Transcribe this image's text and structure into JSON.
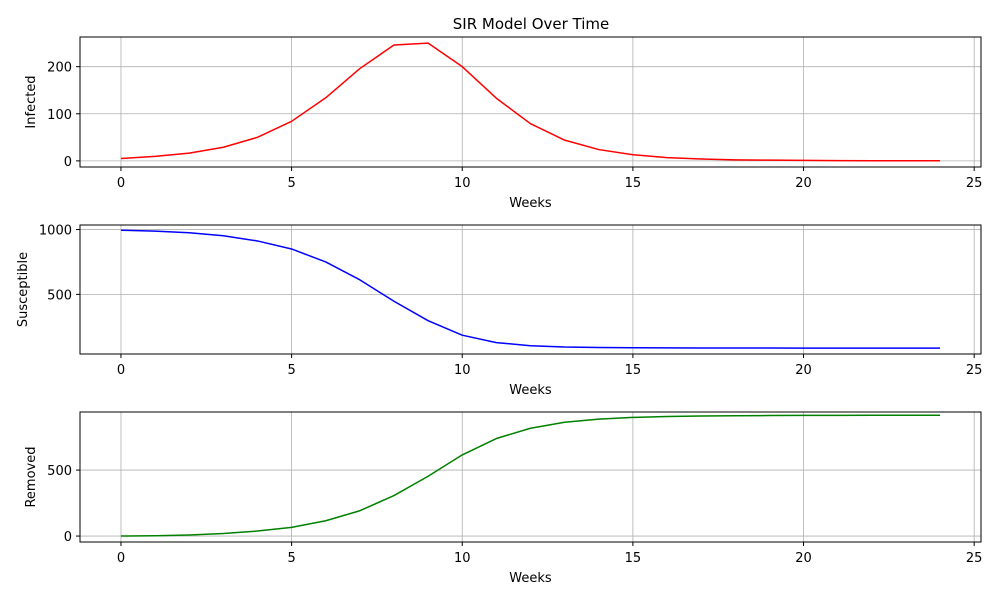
{
  "chart_data": {
    "type": "line",
    "title": "SIR Model Over Time",
    "grid": true,
    "panels": [
      {
        "ylabel": "Infected",
        "xlabel": "Weeks",
        "color": "#ff0000",
        "xlim": [
          -1.2,
          25.2
        ],
        "ylim": [
          -13,
          263
        ],
        "xticks": [
          0,
          5,
          10,
          15,
          20,
          25
        ],
        "yticks": [
          0,
          100,
          200
        ],
        "x": [
          0,
          1,
          2,
          3,
          4,
          5,
          6,
          7,
          8,
          9,
          10,
          11,
          12,
          13,
          14,
          15,
          16,
          17,
          18,
          19,
          20,
          21,
          22,
          23,
          24
        ],
        "y": [
          5,
          9.5,
          16.5,
          29,
          50,
          84,
          134,
          196,
          246,
          250,
          200,
          133,
          79,
          44,
          24,
          13,
          7,
          4,
          2,
          1.5,
          1,
          0.6,
          0.4,
          0.3,
          0.2
        ]
      },
      {
        "ylabel": "Susceptible",
        "xlabel": "Weeks",
        "color": "#0000ff",
        "xlim": [
          -1.2,
          25.2
        ],
        "ylim": [
          40,
          1035
        ],
        "xticks": [
          0,
          5,
          10,
          15,
          20,
          25
        ],
        "yticks": [
          500,
          1000
        ],
        "x": [
          0,
          1,
          2,
          3,
          4,
          5,
          6,
          7,
          8,
          9,
          10,
          11,
          12,
          13,
          14,
          15,
          16,
          17,
          18,
          19,
          20,
          21,
          22,
          23,
          24
        ],
        "y": [
          995,
          988,
          975,
          952,
          912,
          850,
          750,
          612,
          447,
          297,
          185,
          128,
          104,
          94,
          90,
          88,
          87,
          86,
          86,
          86,
          85,
          85,
          85,
          85,
          85
        ]
      },
      {
        "ylabel": "Removed",
        "xlabel": "Weeks",
        "color": "#008000",
        "xlim": [
          -1.2,
          25.2
        ],
        "ylim": [
          -45,
          940
        ],
        "xticks": [
          0,
          5,
          10,
          15,
          20,
          25
        ],
        "yticks": [
          0,
          500
        ],
        "x": [
          0,
          1,
          2,
          3,
          4,
          5,
          6,
          7,
          8,
          9,
          10,
          11,
          12,
          13,
          14,
          15,
          16,
          17,
          18,
          19,
          20,
          21,
          22,
          23,
          24
        ],
        "y": [
          0,
          2.5,
          8.5,
          19,
          38,
          66,
          116,
          192,
          307,
          453,
          615,
          739,
          817,
          862,
          886,
          899,
          906,
          910,
          912,
          913,
          914,
          914,
          915,
          915,
          915
        ]
      }
    ]
  }
}
